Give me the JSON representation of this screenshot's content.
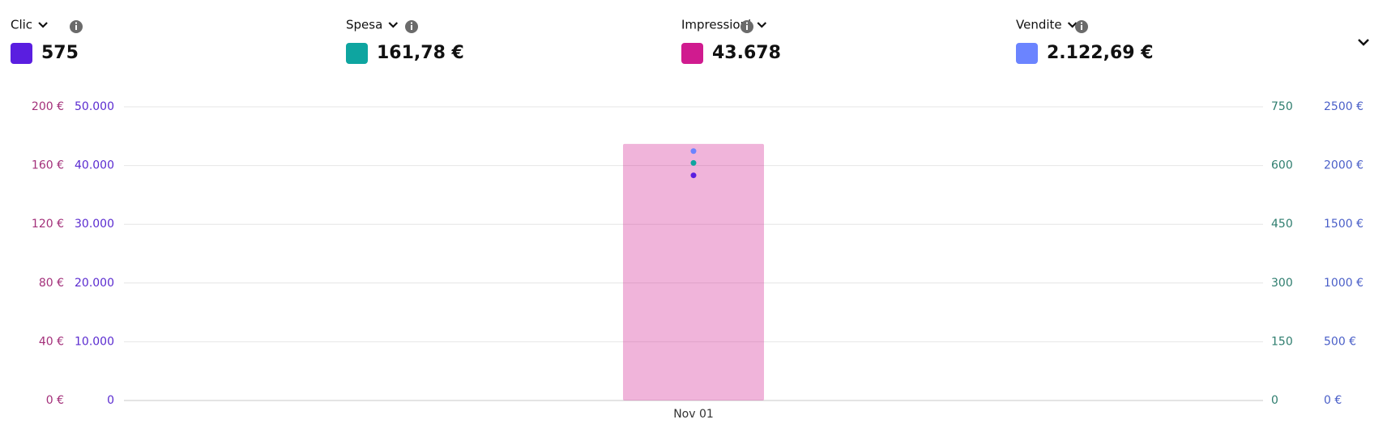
{
  "chart_data": {
    "type": "combo",
    "categories": [
      "Nov 01"
    ],
    "grid": true,
    "axes": [
      {
        "side": "left",
        "color": "#a3307a",
        "ylim": [
          0,
          200
        ],
        "yticks": [
          {
            "value": 0,
            "label": "0 €"
          },
          {
            "value": 40,
            "label": "40 €"
          },
          {
            "value": 80,
            "label": "80 €"
          },
          {
            "value": 120,
            "label": "120 €"
          },
          {
            "value": 160,
            "label": "160 €"
          },
          {
            "value": 200,
            "label": "200 €"
          }
        ]
      },
      {
        "side": "left",
        "color": "#5a2bd0",
        "ylim": [
          0,
          50000
        ],
        "yticks": [
          0,
          {
            "value": 10000,
            "label": "10.000"
          },
          {
            "value": 20000,
            "label": "20.000"
          },
          {
            "value": 30000,
            "label": "30.000"
          },
          {
            "value": 40000,
            "label": "40.000"
          },
          {
            "value": 50000,
            "label": "50.000"
          }
        ]
      },
      {
        "side": "right",
        "color": "#2e7d6e",
        "ylim": [
          0,
          750
        ],
        "yticks": [
          0,
          150,
          300,
          450,
          600,
          750
        ]
      },
      {
        "side": "right",
        "color": "#4a5fc8",
        "ylim": [
          0,
          2500
        ],
        "yticks": [
          {
            "value": 0,
            "label": "0 €"
          },
          {
            "value": 500,
            "label": "500 €"
          },
          {
            "value": 1000,
            "label": "1000 €"
          },
          {
            "value": 1500,
            "label": "1500 €"
          },
          {
            "value": 2000,
            "label": "2000 €"
          },
          {
            "value": 2500,
            "label": "2500 €"
          }
        ]
      }
    ],
    "series": [
      {
        "name": "Clic",
        "type": "line",
        "color": "#5a1ee0",
        "axis": 2,
        "values": [
          575
        ],
        "value_labels": [
          "575"
        ]
      },
      {
        "name": "Spesa",
        "type": "line",
        "color": "#0ea5a0",
        "axis": 0,
        "values": [
          161.78
        ],
        "value_labels": [
          "161,78 €"
        ]
      },
      {
        "name": "Impressioni",
        "type": "bar",
        "color": "#d01b8f",
        "axis": 1,
        "values": [
          43678
        ],
        "value_labels": [
          "43.678"
        ]
      },
      {
        "name": "Vendite",
        "type": "line",
        "color": "#6b84ff",
        "axis": 3,
        "values": [
          2122.69
        ],
        "value_labels": [
          "2.122,69 €"
        ]
      }
    ]
  }
}
